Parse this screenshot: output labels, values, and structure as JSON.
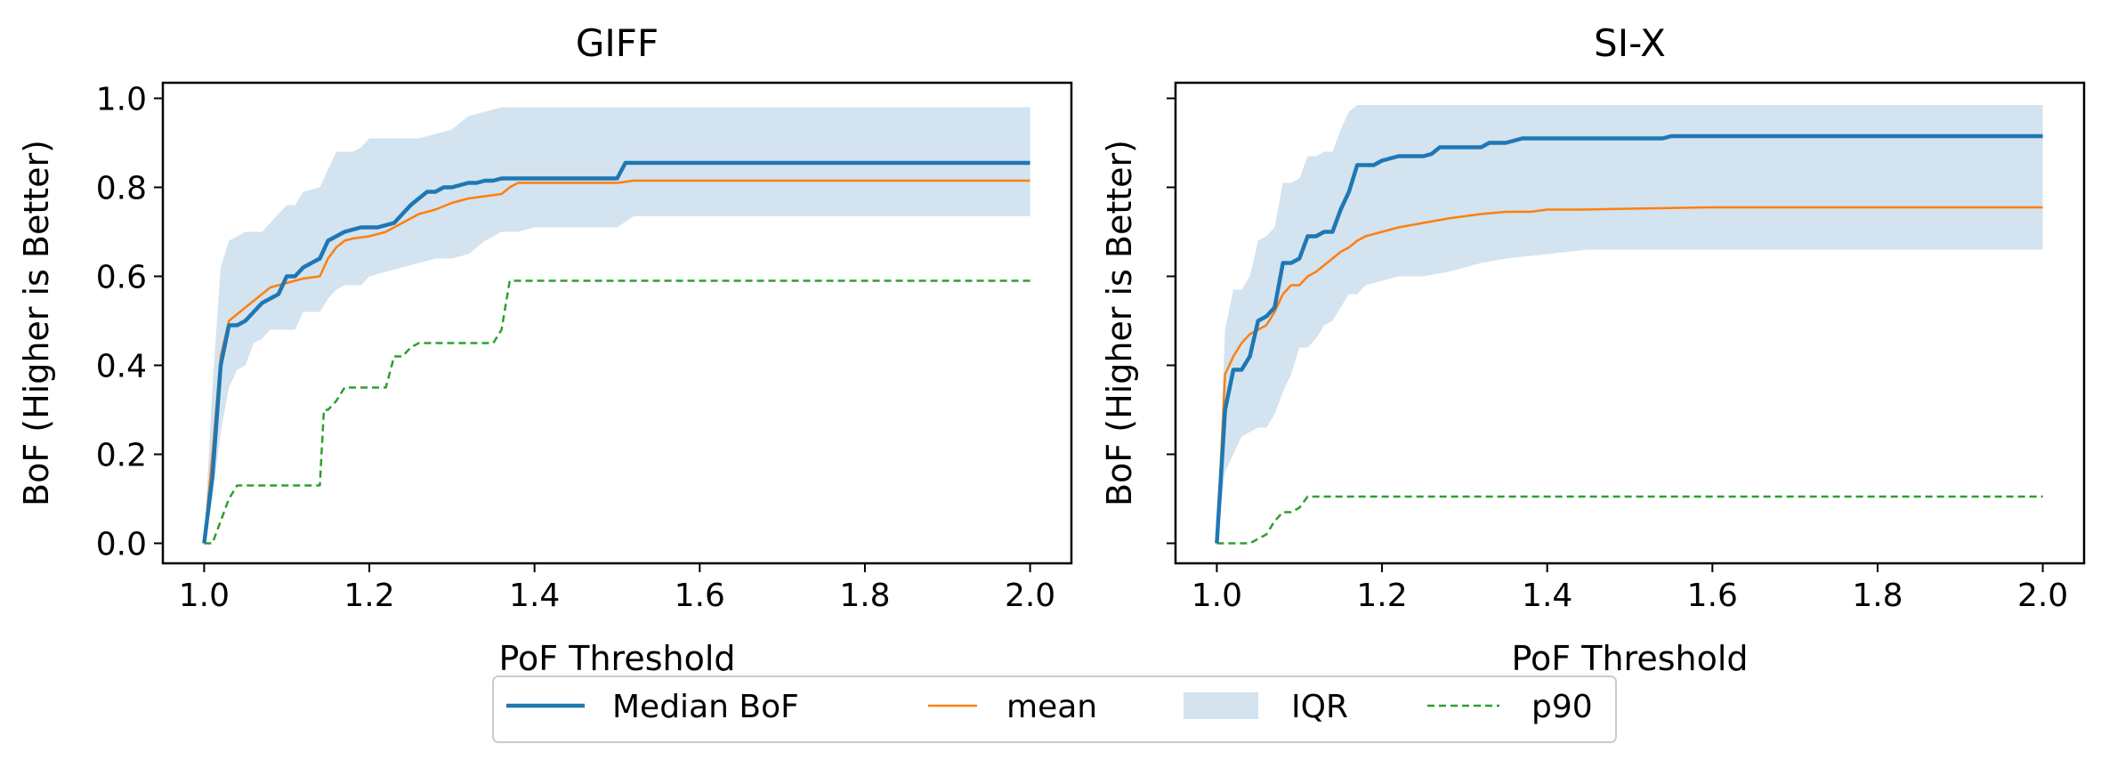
{
  "figure": {
    "legend": {
      "placement": "bottom-center",
      "entries": [
        {
          "key": "median",
          "label": "Median BoF"
        },
        {
          "key": "mean",
          "label": "mean"
        },
        {
          "key": "iqr",
          "label": "IQR"
        },
        {
          "key": "p90",
          "label": "p90"
        }
      ]
    },
    "colors": {
      "median": "#1f77b4",
      "mean": "#ff7f0e",
      "iqr": "#d3e3ef",
      "p90": "#2ca02c"
    }
  },
  "chart_data": [
    {
      "type": "line",
      "title": "GIFF",
      "xlabel": "PoF Threshold",
      "ylabel": "BoF (Higher is Better)",
      "xlim": [
        0.95,
        2.05
      ],
      "ylim": [
        -0.045,
        1.035
      ],
      "xticks": [
        1.0,
        1.2,
        1.4,
        1.6,
        1.8,
        2.0
      ],
      "xtick_labels": [
        "1.0",
        "1.2",
        "1.4",
        "1.6",
        "1.8",
        "2.0"
      ],
      "yticks": [
        0.0,
        0.2,
        0.4,
        0.6,
        0.8,
        1.0
      ],
      "ytick_labels": [
        "0.0",
        "0.2",
        "0.4",
        "0.6",
        "0.8",
        "1.0"
      ],
      "grid": false,
      "series": [
        {
          "name": "Median BoF",
          "style": "solid-thick",
          "x": [
            1.0,
            1.01,
            1.02,
            1.03,
            1.04,
            1.05,
            1.06,
            1.07,
            1.08,
            1.09,
            1.1,
            1.11,
            1.12,
            1.13,
            1.14,
            1.15,
            1.16,
            1.17,
            1.18,
            1.19,
            1.2,
            1.21,
            1.22,
            1.23,
            1.24,
            1.25,
            1.26,
            1.27,
            1.28,
            1.29,
            1.3,
            1.31,
            1.32,
            1.33,
            1.34,
            1.35,
            1.36,
            1.37,
            1.38,
            1.4,
            1.45,
            1.5,
            1.51,
            1.55,
            1.6,
            1.8,
            2.0
          ],
          "y": [
            0.0,
            0.15,
            0.4,
            0.49,
            0.49,
            0.5,
            0.52,
            0.54,
            0.55,
            0.56,
            0.6,
            0.6,
            0.62,
            0.63,
            0.64,
            0.68,
            0.69,
            0.7,
            0.705,
            0.71,
            0.71,
            0.71,
            0.715,
            0.72,
            0.74,
            0.76,
            0.775,
            0.79,
            0.79,
            0.8,
            0.8,
            0.805,
            0.81,
            0.81,
            0.815,
            0.815,
            0.82,
            0.82,
            0.82,
            0.82,
            0.82,
            0.82,
            0.855,
            0.855,
            0.855,
            0.855,
            0.855
          ]
        },
        {
          "name": "mean",
          "style": "solid-thin",
          "x": [
            1.0,
            1.01,
            1.02,
            1.03,
            1.04,
            1.05,
            1.06,
            1.07,
            1.08,
            1.09,
            1.1,
            1.12,
            1.14,
            1.15,
            1.16,
            1.17,
            1.18,
            1.2,
            1.22,
            1.24,
            1.25,
            1.26,
            1.28,
            1.3,
            1.32,
            1.34,
            1.36,
            1.37,
            1.38,
            1.4,
            1.45,
            1.5,
            1.52,
            1.6,
            1.8,
            2.0
          ],
          "y": [
            0.0,
            0.2,
            0.42,
            0.5,
            0.515,
            0.53,
            0.545,
            0.56,
            0.575,
            0.58,
            0.585,
            0.595,
            0.6,
            0.64,
            0.665,
            0.68,
            0.685,
            0.69,
            0.7,
            0.72,
            0.73,
            0.74,
            0.75,
            0.765,
            0.775,
            0.78,
            0.785,
            0.8,
            0.81,
            0.81,
            0.81,
            0.81,
            0.815,
            0.815,
            0.815,
            0.815
          ]
        },
        {
          "name": "IQR",
          "style": "band",
          "x": [
            1.0,
            1.01,
            1.02,
            1.03,
            1.04,
            1.05,
            1.06,
            1.07,
            1.08,
            1.1,
            1.11,
            1.12,
            1.14,
            1.15,
            1.16,
            1.17,
            1.18,
            1.19,
            1.2,
            1.22,
            1.24,
            1.26,
            1.28,
            1.3,
            1.32,
            1.34,
            1.36,
            1.38,
            1.4,
            1.45,
            1.5,
            1.52,
            1.6,
            1.8,
            2.0
          ],
          "low": [
            0.0,
            0.1,
            0.25,
            0.35,
            0.39,
            0.4,
            0.45,
            0.46,
            0.48,
            0.48,
            0.48,
            0.52,
            0.52,
            0.55,
            0.57,
            0.58,
            0.58,
            0.58,
            0.6,
            0.61,
            0.62,
            0.63,
            0.64,
            0.64,
            0.65,
            0.68,
            0.7,
            0.7,
            0.71,
            0.71,
            0.71,
            0.735,
            0.735,
            0.735,
            0.735
          ],
          "high": [
            0.0,
            0.35,
            0.62,
            0.68,
            0.69,
            0.7,
            0.7,
            0.7,
            0.72,
            0.76,
            0.76,
            0.79,
            0.8,
            0.84,
            0.88,
            0.88,
            0.88,
            0.89,
            0.91,
            0.91,
            0.91,
            0.91,
            0.92,
            0.93,
            0.96,
            0.97,
            0.98,
            0.98,
            0.98,
            0.98,
            0.98,
            0.98,
            0.98,
            0.98,
            0.98
          ]
        },
        {
          "name": "p90",
          "style": "dashed",
          "x": [
            1.0,
            1.01,
            1.02,
            1.03,
            1.04,
            1.05,
            1.1,
            1.14,
            1.145,
            1.15,
            1.16,
            1.17,
            1.22,
            1.23,
            1.24,
            1.25,
            1.26,
            1.27,
            1.35,
            1.36,
            1.37,
            1.38,
            1.4,
            1.6,
            2.0
          ],
          "y": [
            0.0,
            0.0,
            0.05,
            0.1,
            0.13,
            0.13,
            0.13,
            0.13,
            0.3,
            0.3,
            0.32,
            0.35,
            0.35,
            0.42,
            0.42,
            0.44,
            0.45,
            0.45,
            0.45,
            0.48,
            0.59,
            0.59,
            0.59,
            0.59,
            0.59
          ]
        }
      ]
    },
    {
      "type": "line",
      "title": "SI-X",
      "xlabel": "PoF Threshold",
      "ylabel": "BoF (Higher is Better)",
      "xlim": [
        0.95,
        2.05
      ],
      "ylim": [
        -0.045,
        1.035
      ],
      "xticks": [
        1.0,
        1.2,
        1.4,
        1.6,
        1.8,
        2.0
      ],
      "xtick_labels": [
        "1.0",
        "1.2",
        "1.4",
        "1.6",
        "1.8",
        "2.0"
      ],
      "yticks": [
        0.0,
        0.2,
        0.4,
        0.6,
        0.8,
        1.0
      ],
      "ytick_labels": [],
      "grid": false,
      "series": [
        {
          "name": "Median BoF",
          "style": "solid-thick",
          "x": [
            1.0,
            1.01,
            1.02,
            1.03,
            1.04,
            1.05,
            1.06,
            1.07,
            1.08,
            1.09,
            1.1,
            1.11,
            1.12,
            1.13,
            1.14,
            1.15,
            1.16,
            1.17,
            1.18,
            1.19,
            1.2,
            1.21,
            1.22,
            1.25,
            1.26,
            1.27,
            1.3,
            1.32,
            1.33,
            1.35,
            1.36,
            1.37,
            1.4,
            1.5,
            1.54,
            1.55,
            1.6,
            1.8,
            2.0
          ],
          "y": [
            0.0,
            0.3,
            0.39,
            0.39,
            0.42,
            0.5,
            0.51,
            0.53,
            0.63,
            0.63,
            0.64,
            0.69,
            0.69,
            0.7,
            0.7,
            0.75,
            0.79,
            0.85,
            0.85,
            0.85,
            0.86,
            0.865,
            0.87,
            0.87,
            0.875,
            0.89,
            0.89,
            0.89,
            0.9,
            0.9,
            0.905,
            0.91,
            0.91,
            0.91,
            0.91,
            0.915,
            0.915,
            0.915,
            0.915
          ]
        },
        {
          "name": "mean",
          "style": "solid-thin",
          "x": [
            1.0,
            1.01,
            1.02,
            1.03,
            1.04,
            1.05,
            1.06,
            1.07,
            1.08,
            1.09,
            1.1,
            1.11,
            1.12,
            1.13,
            1.14,
            1.15,
            1.16,
            1.17,
            1.18,
            1.2,
            1.22,
            1.25,
            1.28,
            1.3,
            1.32,
            1.35,
            1.38,
            1.4,
            1.44,
            1.5,
            1.6,
            1.8,
            2.0
          ],
          "y": [
            0.0,
            0.38,
            0.42,
            0.45,
            0.47,
            0.48,
            0.49,
            0.52,
            0.56,
            0.58,
            0.58,
            0.6,
            0.61,
            0.625,
            0.64,
            0.655,
            0.665,
            0.68,
            0.69,
            0.7,
            0.71,
            0.72,
            0.73,
            0.735,
            0.74,
            0.745,
            0.745,
            0.75,
            0.75,
            0.752,
            0.755,
            0.755,
            0.755
          ]
        },
        {
          "name": "IQR",
          "style": "band",
          "x": [
            1.0,
            1.01,
            1.02,
            1.03,
            1.04,
            1.05,
            1.06,
            1.07,
            1.08,
            1.09,
            1.1,
            1.11,
            1.12,
            1.13,
            1.14,
            1.15,
            1.16,
            1.17,
            1.18,
            1.2,
            1.22,
            1.25,
            1.28,
            1.3,
            1.32,
            1.35,
            1.4,
            1.45,
            1.5,
            1.55,
            1.6,
            1.8,
            2.0
          ],
          "low": [
            0.0,
            0.16,
            0.2,
            0.24,
            0.25,
            0.26,
            0.26,
            0.29,
            0.34,
            0.38,
            0.44,
            0.44,
            0.46,
            0.49,
            0.5,
            0.53,
            0.56,
            0.56,
            0.58,
            0.59,
            0.6,
            0.6,
            0.61,
            0.62,
            0.63,
            0.64,
            0.65,
            0.66,
            0.66,
            0.66,
            0.66,
            0.66,
            0.66
          ]
        },
        {
          "name": "p90",
          "style": "dashed",
          "x": [
            1.0,
            1.01,
            1.04,
            1.05,
            1.06,
            1.07,
            1.08,
            1.09,
            1.1,
            1.11,
            1.4,
            1.6,
            1.8,
            2.0
          ],
          "y": [
            0.0,
            0.0,
            0.0,
            0.01,
            0.02,
            0.05,
            0.07,
            0.07,
            0.08,
            0.105,
            0.105,
            0.105,
            0.105,
            0.105
          ]
        }
      ]
    }
  ]
}
